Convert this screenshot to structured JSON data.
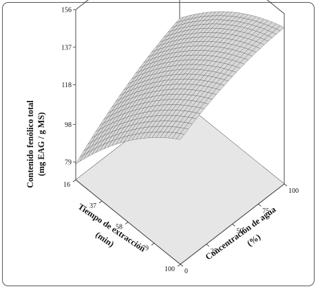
{
  "chart_data": {
    "type": "surface3d",
    "title": "",
    "zlabel": [
      "Contenido fenólico total",
      "(mg EAG / g MS)"
    ],
    "xlabel": [
      "Tiempo de extracción",
      "(min)"
    ],
    "ylabel": [
      "Concentración de agua",
      "(%)"
    ],
    "x_ticks": [
      "16",
      "37",
      "58",
      "79",
      "100"
    ],
    "y_ticks": [
      "0",
      "25",
      "50",
      "75",
      "100"
    ],
    "z_ticks": [
      "79",
      "98",
      "118",
      "137",
      "156"
    ],
    "xlim": [
      16,
      100
    ],
    "ylim": [
      0,
      100
    ],
    "zlim": [
      70,
      156
    ],
    "surface": {
      "description_values": "response surface z(time, water%) sampled corners",
      "corners": [
        {
          "time": 100,
          "water": 0,
          "z": 133
        },
        {
          "time": 16,
          "water": 0,
          "z": 78
        },
        {
          "time": 100,
          "water": 100,
          "z": 149
        },
        {
          "time": 16,
          "water": 100,
          "z": 111
        }
      ],
      "max": {
        "time": 90,
        "water": 70,
        "z": 154
      }
    },
    "colors": {
      "surface": "#d8d8d8",
      "mesh": "#4a4a4a",
      "floor": "#e6e6e6",
      "box": "#333333"
    }
  }
}
